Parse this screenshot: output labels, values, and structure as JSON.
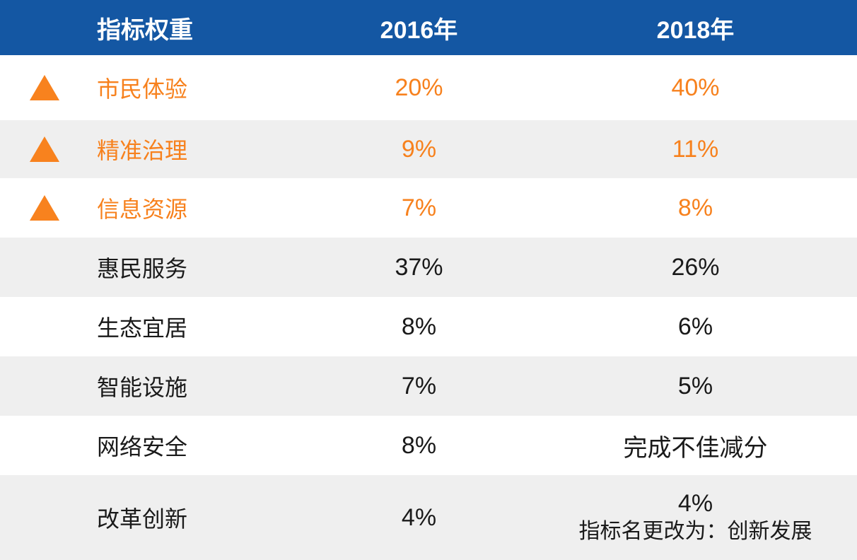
{
  "table": {
    "header": {
      "col_indicator": "指标权重",
      "col_2016": "2016年",
      "col_2018": "2018年"
    },
    "rows": [
      {
        "name": "市民体验",
        "y2016": "20%",
        "y2018": "40%",
        "highlighted": true,
        "trend_icon": "triangle-up-icon"
      },
      {
        "name": "精准治理",
        "y2016": "9%",
        "y2018": "11%",
        "highlighted": true,
        "trend_icon": "triangle-up-icon"
      },
      {
        "name": "信息资源",
        "y2016": "7%",
        "y2018": "8%",
        "highlighted": true,
        "trend_icon": "triangle-up-icon"
      },
      {
        "name": "惠民服务",
        "y2016": "37%",
        "y2018": "26%",
        "highlighted": false
      },
      {
        "name": "生态宜居",
        "y2016": "8%",
        "y2018": "6%",
        "highlighted": false
      },
      {
        "name": "智能设施",
        "y2016": "7%",
        "y2018": "5%",
        "highlighted": false
      },
      {
        "name": "网络安全",
        "y2016": "8%",
        "y2018": "完成不佳减分",
        "highlighted": false
      },
      {
        "name": "改革创新",
        "y2016": "4%",
        "y2018": "4%",
        "y2018_note": "指标名更改为：创新发展",
        "highlighted": false
      }
    ]
  },
  "colors": {
    "header_bg": "#1457A3",
    "header_text": "#FFFFFF",
    "highlight_orange": "#F7811D",
    "triangle_orange": "#F8821E",
    "row_alt_bg": "#EFEFEF",
    "body_text": "#1A1A1A"
  },
  "chart_data": {
    "type": "table",
    "title": "指标权重",
    "columns": [
      "指标权重",
      "2016年",
      "2018年"
    ],
    "rows": [
      [
        "市民体验",
        "20%",
        "40%"
      ],
      [
        "精准治理",
        "9%",
        "11%"
      ],
      [
        "信息资源",
        "7%",
        "8%"
      ],
      [
        "惠民服务",
        "37%",
        "26%"
      ],
      [
        "生态宜居",
        "8%",
        "6%"
      ],
      [
        "智能设施",
        "7%",
        "5%"
      ],
      [
        "网络安全",
        "8%",
        "完成不佳减分"
      ],
      [
        "改革创新",
        "4%",
        "4% 指标名更改为：创新发展"
      ]
    ],
    "highlighted_rows": [
      "市民体验",
      "精准治理",
      "信息资源"
    ],
    "legend_position": "none",
    "grid": false
  }
}
